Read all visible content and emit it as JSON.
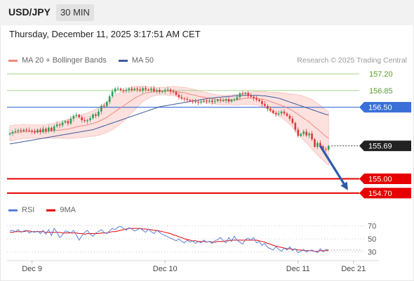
{
  "header": {
    "symbol": "USD/JPY",
    "timeframe": "30 MIN"
  },
  "datetime": "Thursday, December 11, 2025 3:17:51 AM CET",
  "legend": {
    "ma20_label": "MA 20 + Bollinger Bands",
    "ma50_label": "MA 50",
    "rsi_label": "RSI",
    "ma9_label": "9MA"
  },
  "credit": "Research © 2025 Trading Central",
  "colors": {
    "up": "#2e9e5b",
    "down": "#d93a3a",
    "ma20": "#f08a80",
    "band": "#fbd7d4",
    "ma50": "#3e5b9e",
    "support": "#e60000",
    "pivot": "#3a6fd8",
    "resistance": "#a8d48a",
    "rsi": "#5b7fd6",
    "rsi_ma": "#e60000",
    "arrow": "#2d5aa8"
  },
  "chart_data": {
    "type": "candlestick",
    "price_range": [
      154.55,
      157.35
    ],
    "x_ticks": [
      "Dec 9",
      "Dec 10",
      "Dec 11",
      "Dec 21"
    ],
    "x_tick_index": [
      8,
      56,
      104,
      124
    ],
    "levels": [
      {
        "value": 157.2,
        "label": "157.20",
        "type": "resistance"
      },
      {
        "value": 156.85,
        "label": "156.85",
        "type": "resistance"
      },
      {
        "value": 156.5,
        "label": "156.50",
        "type": "pivot"
      },
      {
        "value": 155.69,
        "label": "155.69",
        "type": "current"
      },
      {
        "value": 155.0,
        "label": "155.00",
        "type": "support"
      },
      {
        "value": 154.7,
        "label": "154.70",
        "type": "support"
      }
    ],
    "forecast_arrow": {
      "from_index": 112,
      "from_value": 155.69,
      "to_index": 122,
      "to_value": 154.76
    },
    "close": [
      155.95,
      155.98,
      156.0,
      156.02,
      156.0,
      156.03,
      156.02,
      156.01,
      156.0,
      155.97,
      156.03,
      155.98,
      156.05,
      156.0,
      156.07,
      156.01,
      156.1,
      156.14,
      156.12,
      156.18,
      156.21,
      156.16,
      156.26,
      156.32,
      156.34,
      156.29,
      156.23,
      156.21,
      156.23,
      156.27,
      156.35,
      156.32,
      156.41,
      156.53,
      156.52,
      156.61,
      156.73,
      156.83,
      156.89,
      156.89,
      156.86,
      156.84,
      156.86,
      156.89,
      156.86,
      156.89,
      156.87,
      156.85,
      156.9,
      156.87,
      156.86,
      156.89,
      156.84,
      156.86,
      156.82,
      156.83,
      156.86,
      156.87,
      156.83,
      156.82,
      156.76,
      156.71,
      156.68,
      156.67,
      156.65,
      156.63,
      156.62,
      156.61,
      156.6,
      156.62,
      156.64,
      156.62,
      156.64,
      156.61,
      156.63,
      156.66,
      156.64,
      156.64,
      156.67,
      156.62,
      156.66,
      156.66,
      156.71,
      156.79,
      156.78,
      156.8,
      156.74,
      156.72,
      156.69,
      156.66,
      156.63,
      156.57,
      156.53,
      156.47,
      156.43,
      156.38,
      156.35,
      156.37,
      156.41,
      156.37,
      156.32,
      156.26,
      156.17,
      156.03,
      155.9,
      155.94,
      155.99,
      155.91,
      155.95,
      155.83,
      155.67,
      155.75,
      155.68,
      155.62,
      155.61,
      155.69
    ],
    "open": [
      155.93,
      155.95,
      155.98,
      156.0,
      156.02,
      156.0,
      156.03,
      156.02,
      156.01,
      156.0,
      155.97,
      156.03,
      155.98,
      156.05,
      156.0,
      156.07,
      156.01,
      156.1,
      156.14,
      156.12,
      156.18,
      156.21,
      156.16,
      156.26,
      156.32,
      156.34,
      156.29,
      156.23,
      156.21,
      156.23,
      156.27,
      156.35,
      156.32,
      156.41,
      156.53,
      156.52,
      156.61,
      156.73,
      156.83,
      156.89,
      156.89,
      156.86,
      156.84,
      156.86,
      156.89,
      156.86,
      156.89,
      156.87,
      156.85,
      156.9,
      156.87,
      156.86,
      156.89,
      156.84,
      156.86,
      156.82,
      156.83,
      156.86,
      156.87,
      156.83,
      156.82,
      156.76,
      156.71,
      156.68,
      156.67,
      156.65,
      156.63,
      156.62,
      156.61,
      156.6,
      156.62,
      156.64,
      156.62,
      156.64,
      156.61,
      156.63,
      156.66,
      156.64,
      156.64,
      156.67,
      156.62,
      156.66,
      156.66,
      156.71,
      156.79,
      156.78,
      156.8,
      156.74,
      156.72,
      156.69,
      156.66,
      156.63,
      156.57,
      156.53,
      156.47,
      156.43,
      156.38,
      156.35,
      156.37,
      156.41,
      156.37,
      156.32,
      156.26,
      156.17,
      156.03,
      155.9,
      155.94,
      155.99,
      155.91,
      155.95,
      155.83,
      155.67,
      155.75,
      155.68,
      155.62,
      155.61
    ],
    "ma20": [
      155.95,
      155.96,
      155.97,
      155.98,
      155.98,
      155.99,
      155.99,
      155.99,
      155.99,
      155.99,
      155.99,
      155.99,
      155.99,
      155.99,
      156.0,
      156.0,
      156.01,
      156.02,
      156.02,
      156.03,
      156.04,
      156.04,
      156.06,
      156.07,
      156.09,
      156.1,
      156.11,
      156.12,
      156.13,
      156.15,
      156.16,
      156.18,
      156.2,
      156.23,
      156.26,
      156.29,
      156.33,
      156.37,
      156.41,
      156.45,
      156.49,
      156.53,
      156.57,
      156.61,
      156.65,
      156.69,
      156.72,
      156.75,
      156.78,
      156.8,
      156.81,
      156.82,
      156.83,
      156.83,
      156.84,
      156.84,
      156.84,
      156.84,
      156.84,
      156.84,
      156.83,
      156.82,
      156.81,
      156.8,
      156.79,
      156.77,
      156.76,
      156.75,
      156.73,
      156.72,
      156.71,
      156.7,
      156.69,
      156.68,
      156.67,
      156.66,
      156.65,
      156.65,
      156.65,
      156.65,
      156.65,
      156.66,
      156.66,
      156.67,
      156.68,
      156.69,
      156.69,
      156.69,
      156.69,
      156.69,
      156.68,
      156.67,
      156.66,
      156.64,
      156.62,
      156.6,
      156.58,
      156.56,
      156.54,
      156.52,
      156.49,
      156.46,
      156.43,
      156.39,
      156.35,
      156.31,
      156.27,
      156.23,
      156.19,
      156.14,
      156.09,
      156.04,
      155.99,
      155.94,
      155.89,
      155.85
    ],
    "bb_width": [
      0.16,
      0.16,
      0.16,
      0.15,
      0.15,
      0.15,
      0.14,
      0.14,
      0.14,
      0.14,
      0.14,
      0.14,
      0.14,
      0.14,
      0.15,
      0.15,
      0.16,
      0.17,
      0.17,
      0.18,
      0.19,
      0.2,
      0.21,
      0.22,
      0.23,
      0.24,
      0.24,
      0.25,
      0.25,
      0.26,
      0.27,
      0.28,
      0.29,
      0.3,
      0.31,
      0.32,
      0.33,
      0.34,
      0.34,
      0.34,
      0.33,
      0.32,
      0.31,
      0.29,
      0.27,
      0.25,
      0.22,
      0.19,
      0.16,
      0.14,
      0.12,
      0.1,
      0.09,
      0.08,
      0.08,
      0.08,
      0.08,
      0.09,
      0.09,
      0.1,
      0.1,
      0.11,
      0.11,
      0.12,
      0.12,
      0.12,
      0.12,
      0.12,
      0.12,
      0.11,
      0.11,
      0.11,
      0.1,
      0.1,
      0.1,
      0.1,
      0.1,
      0.1,
      0.1,
      0.1,
      0.1,
      0.11,
      0.11,
      0.12,
      0.12,
      0.13,
      0.13,
      0.13,
      0.14,
      0.14,
      0.15,
      0.16,
      0.17,
      0.18,
      0.2,
      0.22,
      0.23,
      0.25,
      0.26,
      0.28,
      0.3,
      0.32,
      0.35,
      0.38,
      0.41,
      0.44,
      0.46,
      0.48,
      0.5,
      0.52,
      0.53,
      0.54,
      0.55,
      0.55,
      0.56,
      0.56
    ],
    "ma50": [
      155.73,
      155.74,
      155.75,
      155.76,
      155.77,
      155.78,
      155.79,
      155.8,
      155.81,
      155.82,
      155.83,
      155.84,
      155.85,
      155.86,
      155.87,
      155.88,
      155.89,
      155.9,
      155.91,
      155.92,
      155.93,
      155.94,
      155.95,
      155.96,
      155.97,
      155.98,
      155.99,
      156.0,
      156.01,
      156.02,
      156.03,
      156.05,
      156.07,
      156.09,
      156.11,
      156.13,
      156.15,
      156.17,
      156.19,
      156.21,
      156.23,
      156.25,
      156.27,
      156.29,
      156.31,
      156.33,
      156.35,
      156.37,
      156.39,
      156.41,
      156.43,
      156.45,
      156.47,
      156.49,
      156.51,
      156.52,
      156.53,
      156.54,
      156.55,
      156.56,
      156.57,
      156.58,
      156.59,
      156.6,
      156.61,
      156.62,
      156.63,
      156.64,
      156.65,
      156.66,
      156.67,
      156.68,
      156.69,
      156.69,
      156.7,
      156.71,
      156.71,
      156.72,
      156.72,
      156.73,
      156.73,
      156.74,
      156.74,
      156.74,
      156.75,
      156.75,
      156.75,
      156.75,
      156.75,
      156.75,
      156.75,
      156.74,
      156.74,
      156.73,
      156.72,
      156.71,
      156.7,
      156.69,
      156.67,
      156.65,
      156.63,
      156.61,
      156.59,
      156.57,
      156.55,
      156.53,
      156.51,
      156.49,
      156.47,
      156.45,
      156.43,
      156.41,
      156.39,
      156.37,
      156.35,
      156.34
    ],
    "rsi": {
      "range": [
        20,
        80
      ],
      "levels": [
        70,
        50,
        30
      ],
      "values": [
        62,
        63,
        61,
        64,
        60,
        62,
        63,
        59,
        61,
        60,
        62,
        58,
        63,
        57,
        64,
        55,
        66,
        60,
        52,
        56,
        62,
        61,
        59,
        63,
        56,
        48,
        55,
        60,
        63,
        57,
        54,
        59,
        61,
        64,
        60,
        58,
        62,
        66,
        64,
        68,
        69,
        66,
        63,
        67,
        65,
        62,
        64,
        66,
        63,
        60,
        65,
        61,
        58,
        63,
        60,
        57,
        55,
        53,
        51,
        49,
        47,
        50,
        46,
        44,
        48,
        45,
        47,
        43,
        46,
        44,
        48,
        45,
        46,
        43,
        47,
        49,
        52,
        47,
        44,
        52,
        46,
        54,
        48,
        45,
        42,
        49,
        51,
        48,
        52,
        44,
        46,
        40,
        43,
        37,
        35,
        33,
        38,
        34,
        31,
        36,
        33,
        38,
        32,
        35,
        29,
        31,
        34,
        30,
        32,
        33,
        31,
        29,
        35,
        30,
        34,
        33
      ],
      "ma9": [
        60,
        60,
        61,
        61,
        61,
        61,
        62,
        62,
        61,
        61,
        61,
        61,
        61,
        60,
        60,
        60,
        60,
        60,
        60,
        59,
        59,
        59,
        59,
        59,
        59,
        58,
        58,
        57,
        58,
        58,
        58,
        58,
        58,
        59,
        59,
        59,
        60,
        61,
        61,
        62,
        63,
        64,
        65,
        66,
        66,
        66,
        66,
        66,
        65,
        65,
        64,
        64,
        63,
        63,
        62,
        61,
        60,
        59,
        58,
        56,
        55,
        53,
        52,
        50,
        49,
        48,
        47,
        47,
        46,
        46,
        46,
        45,
        46,
        45,
        45,
        46,
        46,
        46,
        47,
        47,
        48,
        48,
        48,
        48,
        48,
        48,
        48,
        48,
        48,
        48,
        47,
        46,
        45,
        43,
        42,
        40,
        39,
        38,
        37,
        36,
        35,
        35,
        34,
        34,
        33,
        33,
        32,
        32,
        32,
        32,
        31,
        31,
        32,
        32,
        32,
        32
      ]
    }
  }
}
